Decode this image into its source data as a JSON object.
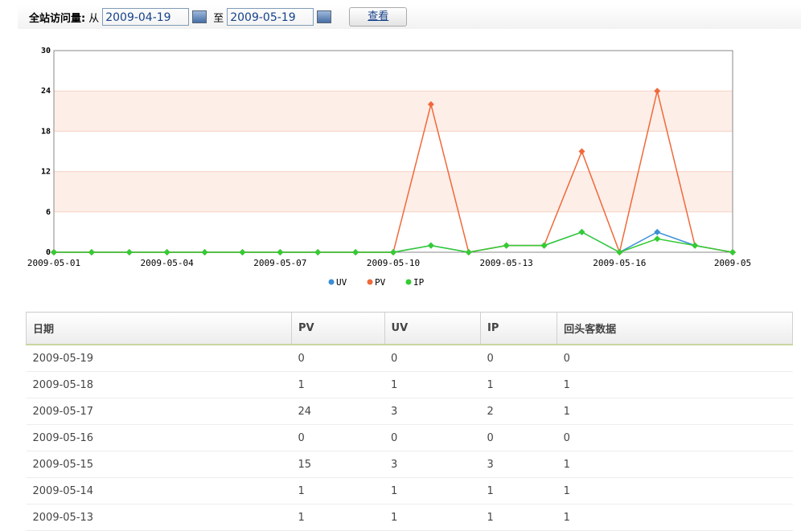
{
  "toolbar": {
    "label": "全站访问量:",
    "from": "从",
    "start": "2009-04-19",
    "to": "至",
    "end": "2009-05-19",
    "button": "查看"
  },
  "chart_data": {
    "type": "line",
    "categories": [
      "2009-05-01",
      null,
      null,
      "2009-05-04",
      null,
      null,
      "2009-05-07",
      null,
      null,
      "2009-05-10",
      null,
      null,
      "2009-05-13",
      null,
      null,
      "2009-05-16",
      null,
      null,
      "2009-05"
    ],
    "series": [
      {
        "name": "UV",
        "color": "#3b8ed6",
        "values": [
          0,
          0,
          0,
          0,
          0,
          0,
          0,
          0,
          0,
          0,
          1,
          0,
          1,
          1,
          3,
          0,
          3,
          1,
          0
        ]
      },
      {
        "name": "PV",
        "color": "#f0693a",
        "values": [
          0,
          0,
          0,
          0,
          0,
          0,
          0,
          0,
          0,
          0,
          22,
          0,
          1,
          1,
          15,
          0,
          24,
          1,
          0
        ]
      },
      {
        "name": "IP",
        "color": "#33cc33",
        "values": [
          0,
          0,
          0,
          0,
          0,
          0,
          0,
          0,
          0,
          0,
          1,
          0,
          1,
          1,
          3,
          0,
          2,
          1,
          0
        ]
      }
    ],
    "ylim": [
      0,
      30
    ],
    "yticks": [
      0,
      6,
      12,
      18,
      24,
      30
    ],
    "grid": true
  },
  "table": {
    "columns": [
      "日期",
      "PV",
      "UV",
      "IP",
      "回头客数据"
    ],
    "rows": [
      [
        "2009-05-19",
        0,
        0,
        0,
        0
      ],
      [
        "2009-05-18",
        1,
        1,
        1,
        1
      ],
      [
        "2009-05-17",
        24,
        3,
        2,
        1
      ],
      [
        "2009-05-16",
        0,
        0,
        0,
        0
      ],
      [
        "2009-05-15",
        15,
        3,
        3,
        1
      ],
      [
        "2009-05-14",
        1,
        1,
        1,
        1
      ],
      [
        "2009-05-13",
        1,
        1,
        1,
        1
      ]
    ]
  }
}
